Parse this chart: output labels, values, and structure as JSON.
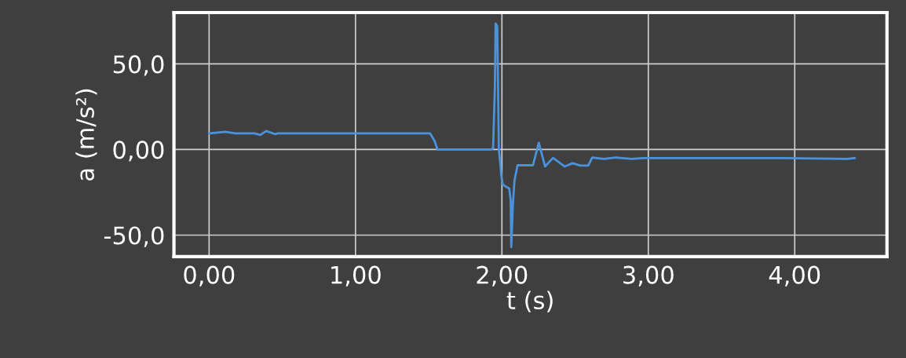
{
  "chart_data": {
    "type": "line",
    "xlabel": "t (s)",
    "ylabel": "a (m/s²)",
    "x": [
      0,
      0.11,
      0.18,
      0.31,
      0.35,
      0.39,
      0.45,
      0.47,
      1.51,
      1.54,
      1.56,
      1.93,
      1.94,
      1.952,
      1.957,
      1.968,
      1.973,
      1.979,
      1.99,
      1.995,
      2.005,
      2.03,
      2.05,
      2.06,
      2.064,
      2.075,
      2.086,
      2.107,
      2.212,
      2.252,
      2.295,
      2.349,
      2.429,
      2.483,
      2.536,
      2.59,
      2.617,
      2.697,
      2.777,
      2.885,
      2.965,
      3.93,
      4.36,
      4.41
    ],
    "series": [
      {
        "color": "#4a93dc",
        "values": [
          9.4,
          10.3,
          9.4,
          9.4,
          8.5,
          10.8,
          9,
          9.4,
          9.4,
          5,
          0,
          0,
          1,
          37,
          73.6,
          72,
          41.5,
          0,
          -9,
          -14.5,
          -20.4,
          -21.8,
          -22.7,
          -29.6,
          -57,
          -32,
          -18,
          -9.2,
          -9.2,
          3.9,
          -9.9,
          -4.9,
          -9.9,
          -8,
          -9.4,
          -9.4,
          -4.7,
          -5.5,
          -4.7,
          -5.5,
          -5.0,
          -5.0,
          -5.5,
          -5.0
        ]
      }
    ],
    "xlim": [
      -0.24,
      4.63
    ],
    "ylim": [
      -62.6,
      80
    ],
    "xticks": [
      {
        "value": 0,
        "label": "0,00"
      },
      {
        "value": 1,
        "label": "1,00"
      },
      {
        "value": 2,
        "label": "2,00"
      },
      {
        "value": 3,
        "label": "3,00"
      },
      {
        "value": 4,
        "label": "4,00"
      }
    ],
    "yticks": [
      {
        "value": -50,
        "label": "-50,0"
      },
      {
        "value": 0,
        "label": "0,00"
      },
      {
        "value": 50,
        "label": "50,0"
      }
    ],
    "grid": true,
    "legend": false,
    "marker": "none",
    "line_style": "solid"
  }
}
